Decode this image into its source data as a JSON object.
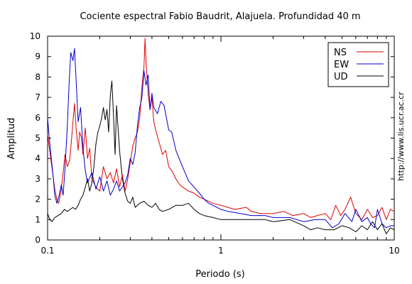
{
  "chart_data": {
    "type": "line",
    "title": "Cociente espectral Fabio Baudrit, Alajuela. Profundidad 40 m",
    "xlabel": "Periodo (s)",
    "ylabel": "Amplitud",
    "x_scale": "log",
    "xlim": [
      0.1,
      10
    ],
    "ylim": [
      0,
      10
    ],
    "x_ticks": [
      "0.1",
      "1",
      "10"
    ],
    "y_ticks": [
      "0",
      "1",
      "2",
      "3",
      "4",
      "5",
      "6",
      "7",
      "8",
      "9",
      "10"
    ],
    "grid": false,
    "legend_position": "top-right",
    "credit": "http://www.lis.ucr.ac.cr",
    "series": [
      {
        "name": "NS",
        "color": "#e00000",
        "points": [
          [
            0.1,
            5.2
          ],
          [
            0.102,
            4.6
          ],
          [
            0.105,
            3.8
          ],
          [
            0.108,
            3.0
          ],
          [
            0.11,
            2.5
          ],
          [
            0.113,
            2.0
          ],
          [
            0.116,
            1.8
          ],
          [
            0.12,
            2.5
          ],
          [
            0.123,
            3.3
          ],
          [
            0.126,
            4.2
          ],
          [
            0.13,
            3.6
          ],
          [
            0.134,
            3.9
          ],
          [
            0.137,
            4.8
          ],
          [
            0.14,
            5.8
          ],
          [
            0.143,
            6.7
          ],
          [
            0.146,
            5.5
          ],
          [
            0.15,
            4.4
          ],
          [
            0.153,
            5.3
          ],
          [
            0.157,
            5.0
          ],
          [
            0.16,
            4.2
          ],
          [
            0.165,
            5.5
          ],
          [
            0.17,
            4.0
          ],
          [
            0.175,
            4.5
          ],
          [
            0.18,
            3.0
          ],
          [
            0.19,
            2.6
          ],
          [
            0.2,
            2.4
          ],
          [
            0.21,
            3.6
          ],
          [
            0.22,
            3.0
          ],
          [
            0.23,
            3.3
          ],
          [
            0.24,
            2.8
          ],
          [
            0.25,
            3.5
          ],
          [
            0.26,
            2.6
          ],
          [
            0.27,
            3.2
          ],
          [
            0.28,
            2.4
          ],
          [
            0.29,
            3.0
          ],
          [
            0.3,
            3.8
          ],
          [
            0.31,
            4.6
          ],
          [
            0.32,
            5.0
          ],
          [
            0.33,
            5.3
          ],
          [
            0.34,
            6.0
          ],
          [
            0.35,
            7.5
          ],
          [
            0.36,
            8.5
          ],
          [
            0.365,
            9.9
          ],
          [
            0.37,
            8.7
          ],
          [
            0.38,
            7.2
          ],
          [
            0.39,
            6.4
          ],
          [
            0.4,
            7.0
          ],
          [
            0.41,
            5.8
          ],
          [
            0.42,
            5.4
          ],
          [
            0.44,
            4.8
          ],
          [
            0.46,
            4.2
          ],
          [
            0.48,
            4.4
          ],
          [
            0.5,
            3.6
          ],
          [
            0.52,
            3.4
          ],
          [
            0.55,
            3.0
          ],
          [
            0.58,
            2.7
          ],
          [
            0.6,
            2.6
          ],
          [
            0.65,
            2.4
          ],
          [
            0.7,
            2.3
          ],
          [
            0.75,
            2.1
          ],
          [
            0.8,
            2.0
          ],
          [
            0.9,
            1.8
          ],
          [
            1.0,
            1.7
          ],
          [
            1.1,
            1.6
          ],
          [
            1.2,
            1.5
          ],
          [
            1.4,
            1.6
          ],
          [
            1.5,
            1.4
          ],
          [
            1.7,
            1.3
          ],
          [
            2.0,
            1.3
          ],
          [
            2.3,
            1.4
          ],
          [
            2.6,
            1.2
          ],
          [
            3.0,
            1.3
          ],
          [
            3.3,
            1.1
          ],
          [
            3.6,
            1.2
          ],
          [
            4.0,
            1.3
          ],
          [
            4.3,
            1.0
          ],
          [
            4.6,
            1.7
          ],
          [
            4.9,
            1.2
          ],
          [
            5.2,
            1.5
          ],
          [
            5.6,
            2.1
          ],
          [
            6.0,
            1.3
          ],
          [
            6.5,
            1.0
          ],
          [
            7.0,
            1.5
          ],
          [
            7.5,
            1.1
          ],
          [
            8.0,
            1.2
          ],
          [
            8.5,
            1.6
          ],
          [
            9.0,
            1.0
          ],
          [
            9.5,
            1.5
          ],
          [
            10,
            1.4
          ]
        ]
      },
      {
        "name": "EW",
        "color": "#0000cc",
        "points": [
          [
            0.1,
            6.0
          ],
          [
            0.102,
            5.1
          ],
          [
            0.105,
            4.0
          ],
          [
            0.108,
            3.0
          ],
          [
            0.11,
            2.2
          ],
          [
            0.113,
            1.8
          ],
          [
            0.116,
            2.1
          ],
          [
            0.12,
            2.7
          ],
          [
            0.123,
            2.2
          ],
          [
            0.126,
            3.5
          ],
          [
            0.13,
            5.6
          ],
          [
            0.133,
            7.6
          ],
          [
            0.136,
            9.2
          ],
          [
            0.14,
            8.8
          ],
          [
            0.143,
            9.4
          ],
          [
            0.147,
            7.4
          ],
          [
            0.15,
            5.8
          ],
          [
            0.155,
            6.5
          ],
          [
            0.16,
            4.5
          ],
          [
            0.165,
            3.4
          ],
          [
            0.17,
            2.8
          ],
          [
            0.18,
            3.3
          ],
          [
            0.19,
            2.5
          ],
          [
            0.2,
            3.1
          ],
          [
            0.21,
            2.4
          ],
          [
            0.22,
            2.9
          ],
          [
            0.23,
            2.2
          ],
          [
            0.24,
            2.5
          ],
          [
            0.25,
            2.9
          ],
          [
            0.26,
            2.4
          ],
          [
            0.27,
            2.6
          ],
          [
            0.28,
            2.8
          ],
          [
            0.29,
            3.2
          ],
          [
            0.3,
            4.0
          ],
          [
            0.31,
            3.7
          ],
          [
            0.32,
            4.3
          ],
          [
            0.33,
            5.6
          ],
          [
            0.34,
            6.5
          ],
          [
            0.35,
            7.0
          ],
          [
            0.36,
            8.3
          ],
          [
            0.37,
            7.6
          ],
          [
            0.38,
            8.1
          ],
          [
            0.39,
            6.4
          ],
          [
            0.4,
            7.2
          ],
          [
            0.41,
            6.5
          ],
          [
            0.43,
            6.2
          ],
          [
            0.45,
            6.8
          ],
          [
            0.47,
            6.6
          ],
          [
            0.5,
            5.4
          ],
          [
            0.52,
            5.3
          ],
          [
            0.55,
            4.4
          ],
          [
            0.58,
            3.9
          ],
          [
            0.6,
            3.6
          ],
          [
            0.65,
            2.9
          ],
          [
            0.7,
            2.6
          ],
          [
            0.75,
            2.3
          ],
          [
            0.8,
            2.0
          ],
          [
            0.85,
            1.8
          ],
          [
            0.9,
            1.7
          ],
          [
            1.0,
            1.5
          ],
          [
            1.1,
            1.4
          ],
          [
            1.3,
            1.3
          ],
          [
            1.5,
            1.2
          ],
          [
            1.8,
            1.2
          ],
          [
            2.0,
            1.1
          ],
          [
            2.5,
            1.1
          ],
          [
            3.0,
            0.9
          ],
          [
            3.5,
            1.0
          ],
          [
            4.0,
            1.0
          ],
          [
            4.4,
            0.6
          ],
          [
            4.8,
            0.8
          ],
          [
            5.2,
            1.3
          ],
          [
            5.7,
            0.9
          ],
          [
            6.0,
            1.5
          ],
          [
            6.5,
            0.9
          ],
          [
            7.0,
            1.1
          ],
          [
            7.3,
            0.8
          ],
          [
            7.7,
            0.6
          ],
          [
            8.0,
            1.5
          ],
          [
            8.5,
            0.8
          ],
          [
            9.0,
            0.6
          ],
          [
            9.5,
            0.7
          ],
          [
            10,
            0.7
          ]
        ]
      },
      {
        "name": "UD",
        "color": "#000000",
        "points": [
          [
            0.1,
            1.3
          ],
          [
            0.103,
            1.0
          ],
          [
            0.106,
            0.9
          ],
          [
            0.11,
            1.1
          ],
          [
            0.115,
            1.2
          ],
          [
            0.12,
            1.3
          ],
          [
            0.125,
            1.5
          ],
          [
            0.13,
            1.4
          ],
          [
            0.135,
            1.5
          ],
          [
            0.14,
            1.6
          ],
          [
            0.145,
            1.5
          ],
          [
            0.15,
            1.7
          ],
          [
            0.155,
            2.0
          ],
          [
            0.16,
            2.2
          ],
          [
            0.165,
            2.6
          ],
          [
            0.17,
            3.0
          ],
          [
            0.175,
            2.4
          ],
          [
            0.18,
            2.8
          ],
          [
            0.185,
            3.6
          ],
          [
            0.19,
            4.7
          ],
          [
            0.195,
            5.3
          ],
          [
            0.2,
            5.6
          ],
          [
            0.205,
            6.0
          ],
          [
            0.21,
            6.5
          ],
          [
            0.215,
            5.9
          ],
          [
            0.22,
            6.4
          ],
          [
            0.225,
            5.3
          ],
          [
            0.23,
            7.1
          ],
          [
            0.235,
            7.8
          ],
          [
            0.24,
            6.1
          ],
          [
            0.245,
            4.2
          ],
          [
            0.25,
            6.6
          ],
          [
            0.255,
            5.5
          ],
          [
            0.26,
            4.4
          ],
          [
            0.27,
            3.0
          ],
          [
            0.28,
            2.3
          ],
          [
            0.29,
            1.9
          ],
          [
            0.3,
            1.8
          ],
          [
            0.31,
            2.1
          ],
          [
            0.32,
            1.6
          ],
          [
            0.34,
            1.8
          ],
          [
            0.36,
            1.9
          ],
          [
            0.38,
            1.7
          ],
          [
            0.4,
            1.6
          ],
          [
            0.42,
            1.8
          ],
          [
            0.44,
            1.5
          ],
          [
            0.46,
            1.4
          ],
          [
            0.5,
            1.5
          ],
          [
            0.55,
            1.7
          ],
          [
            0.6,
            1.7
          ],
          [
            0.65,
            1.8
          ],
          [
            0.7,
            1.5
          ],
          [
            0.75,
            1.3
          ],
          [
            0.8,
            1.2
          ],
          [
            0.9,
            1.1
          ],
          [
            1.0,
            1.0
          ],
          [
            1.2,
            1.0
          ],
          [
            1.5,
            1.0
          ],
          [
            1.8,
            1.0
          ],
          [
            2.0,
            0.9
          ],
          [
            2.5,
            1.0
          ],
          [
            3.0,
            0.7
          ],
          [
            3.3,
            0.5
          ],
          [
            3.6,
            0.6
          ],
          [
            4.0,
            0.5
          ],
          [
            4.5,
            0.5
          ],
          [
            5.0,
            0.7
          ],
          [
            5.5,
            0.6
          ],
          [
            6.0,
            0.4
          ],
          [
            6.5,
            0.7
          ],
          [
            7.0,
            0.5
          ],
          [
            7.5,
            0.9
          ],
          [
            8.0,
            0.5
          ],
          [
            8.5,
            0.8
          ],
          [
            9.0,
            0.3
          ],
          [
            9.5,
            0.6
          ],
          [
            10,
            0.5
          ]
        ]
      }
    ]
  }
}
